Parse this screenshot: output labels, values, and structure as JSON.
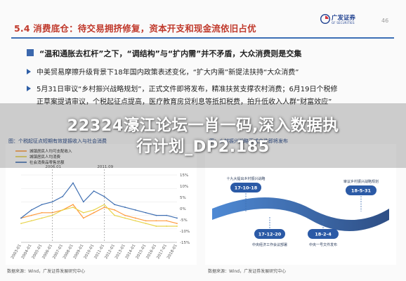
{
  "slide": {
    "title": "5.4 消费底仓：待交易拥挤修复，资本开支和现金流依旧占优",
    "page_number": "46",
    "logo": {
      "name_cn": "广发证券",
      "name_en": "GF SECURITIES"
    },
    "main_bullet": "“温和通胀去杠杆”之下，“调结构”与“扩内需”并不矛盾，大众消费则是交集",
    "sub_bullets": [
      "中美贸易摩擦升级背景下18年国内政策表述变化，“扩大内需”新提法扶持“大众消费”",
      "5月31日审议“乡村振兴战略规划”，正式文件即将发布，精准扶贫支撑农村消费；6月19日个税修",
      "正草案提请审议，个税起征点提高，医疗教育房贷利息等抵扣税费，拍升低收入人群“财富效应”"
    ]
  },
  "overlay": {
    "line1": "22324濠江论坛一肖一码,深入数据执",
    "line2": "行计划_DP2.185"
  },
  "left_chart": {
    "caption": "图：个税起征点短期有效提振收入与社会消费",
    "legend": [
      "城镇居民人均可支配收入",
      "城镇居民人均消费",
      "社会消费品零售总额"
    ],
    "annotations": [
      "2006.01",
      "2011.09"
    ],
    "source": "数据来源：Wind，广发证券发展研究中心"
  },
  "right_chart": {
    "caption": "图：乡村振兴战略正式文件即将发布",
    "source": "数据来源：Wind，广发证券发展研究中心",
    "nodes": [
      {
        "date": "17-10-18",
        "desc": "十九大提出乡村振兴战略"
      },
      {
        "date": "17-12-20",
        "desc": "中央经济工作会议部署"
      },
      {
        "date": "18-2-4",
        "desc": "中央一号文件发布"
      },
      {
        "date": "18-5-31",
        "desc": "审议乡村振兴战略规划"
      }
    ]
  },
  "chart_data": [
    {
      "type": "line",
      "title": "图：个税起征点短期有效提振收入与社会消费",
      "x": [
        "2003-01",
        "2004-01",
        "2005-01",
        "2006-01",
        "2007-01",
        "2008-01",
        "2009-01",
        "2010-01",
        "2011-01",
        "2012-01",
        "2013-01",
        "2014-01",
        "2015-01",
        "2016-01",
        "2017-01",
        "2018-01"
      ],
      "series": [
        {
          "name": "城镇居民人均可支配收入",
          "color": "#ff9a3c",
          "values": [
            9,
            10,
            11,
            11,
            12,
            14,
            9,
            11,
            13,
            12,
            10,
            9,
            8,
            8,
            8,
            7
          ]
        },
        {
          "name": "城镇居民人均消费",
          "color": "#e8d44d",
          "values": [
            7,
            8,
            9,
            10,
            12,
            13,
            11,
            12,
            14,
            10,
            9,
            8,
            7,
            6,
            6,
            6
          ]
        },
        {
          "name": "社会消费品零售总额",
          "color": "#3f6fb2",
          "values": [
            9,
            12,
            14,
            15,
            17,
            22,
            15,
            19,
            17,
            14,
            13,
            12,
            11,
            10,
            10,
            9
          ]
        }
      ],
      "ylim": [
        0,
        25
      ],
      "y_right_ticks": [
        "15%",
        "10%",
        "5%",
        "0%",
        "-5%",
        "-10%",
        "-15%"
      ]
    }
  ]
}
